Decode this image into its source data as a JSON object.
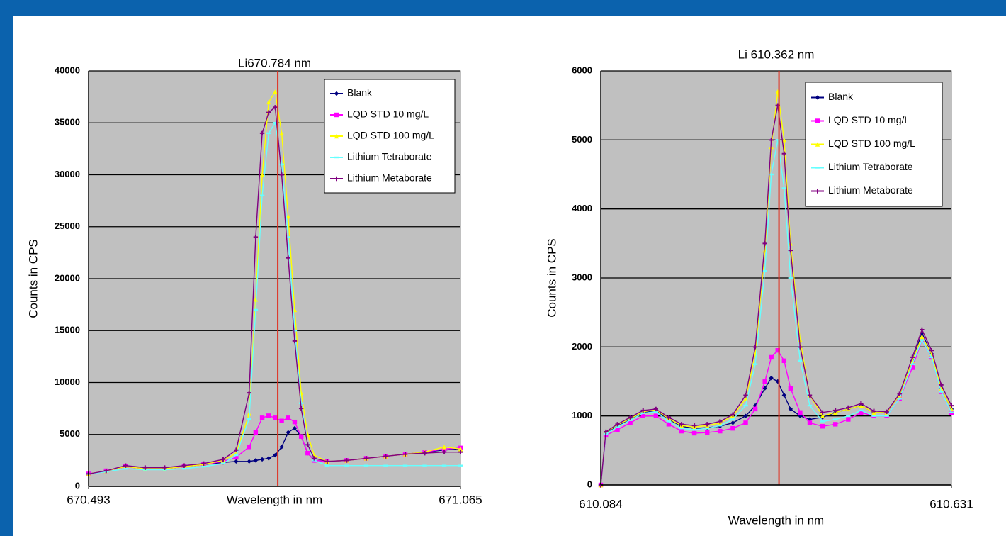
{
  "chart_data": [
    {
      "type": "line",
      "title": "Li670.784 nm",
      "x_label": "Wavelength in nm",
      "y_label": "Counts in CPS",
      "x": [
        670.493,
        670.52,
        670.55,
        670.58,
        670.61,
        670.64,
        670.67,
        670.7,
        670.72,
        670.74,
        670.75,
        670.76,
        670.77,
        670.78,
        670.79,
        670.8,
        670.81,
        670.82,
        670.83,
        670.84,
        670.86,
        670.89,
        670.92,
        670.95,
        670.98,
        671.01,
        671.04,
        671.065
      ],
      "series": [
        {
          "name": "Blank",
          "color": "#000080",
          "marker": "diamond",
          "values": [
            1200,
            1500,
            1900,
            1700,
            1700,
            1900,
            2100,
            2300,
            2400,
            2400,
            2500,
            2600,
            2700,
            3000,
            3800,
            5200,
            5600,
            4800,
            3200,
            2500,
            2400,
            2500,
            2700,
            2900,
            3100,
            3300,
            3500,
            3600
          ]
        },
        {
          "name": "LQD STD 10 mg/L",
          "color": "#ff00ff",
          "marker": "square",
          "values": [
            1200,
            1500,
            1900,
            1700,
            1700,
            1900,
            2100,
            2400,
            2800,
            3800,
            5200,
            6600,
            6800,
            6600,
            6300,
            6600,
            6200,
            4800,
            3200,
            2500,
            2400,
            2500,
            2700,
            2900,
            3100,
            3300,
            3600,
            3700
          ]
        },
        {
          "name": "LQD STD 100 mg/L",
          "color": "#ffff00",
          "marker": "triangle",
          "values": [
            1200,
            1500,
            1900,
            1700,
            1700,
            1900,
            2100,
            2500,
            3200,
            7000,
            18000,
            30000,
            37000,
            38000,
            34000,
            26000,
            17000,
            9000,
            5000,
            3000,
            2400,
            2500,
            2700,
            2900,
            3100,
            3300,
            3800,
            3600
          ]
        },
        {
          "name": "Lithium Tetraborate",
          "color": "#66ffff",
          "marker": "dash",
          "values": [
            1200,
            1400,
            1700,
            1600,
            1600,
            1700,
            1900,
            2200,
            3000,
            6500,
            17000,
            28000,
            34000,
            35000,
            31000,
            24000,
            15000,
            8000,
            4000,
            2500,
            2000,
            2000,
            2000,
            2000,
            2000,
            2000,
            2000,
            2000
          ]
        },
        {
          "name": "Lithium Metaborate",
          "color": "#800080",
          "marker": "cross",
          "values": [
            1200,
            1500,
            2000,
            1800,
            1800,
            2000,
            2200,
            2600,
            3500,
            9000,
            24000,
            34000,
            36000,
            36500,
            30000,
            22000,
            14000,
            7500,
            4000,
            2700,
            2400,
            2500,
            2700,
            2900,
            3100,
            3200,
            3300,
            3300
          ]
        }
      ],
      "reference_line": {
        "x": 670.784,
        "color": "#e03020"
      },
      "xlim": [
        670.493,
        671.065
      ],
      "xticks": [
        670.493,
        671.065
      ],
      "ylim": [
        0,
        40000
      ],
      "yticks": [
        0,
        5000,
        10000,
        15000,
        20000,
        25000,
        30000,
        35000,
        40000
      ],
      "grid": true,
      "legend": "top-right"
    },
    {
      "type": "line",
      "title": "Li 610.362 nm",
      "x_label": "Wavelength in nm",
      "y_label": "Counts in CPS",
      "x": [
        610.084,
        610.092,
        610.11,
        610.13,
        610.15,
        610.17,
        610.19,
        610.21,
        610.23,
        610.25,
        610.27,
        610.29,
        610.31,
        610.325,
        610.34,
        610.35,
        610.36,
        610.37,
        610.38,
        610.395,
        610.41,
        610.43,
        610.45,
        610.47,
        610.49,
        610.51,
        610.53,
        610.55,
        610.57,
        610.585,
        610.6,
        610.615,
        610.631
      ],
      "series": [
        {
          "name": "Blank",
          "color": "#000080",
          "marker": "diamond",
          "values": [
            0,
            750,
            850,
            950,
            1050,
            1080,
            950,
            850,
            820,
            830,
            850,
            900,
            1000,
            1150,
            1400,
            1550,
            1500,
            1300,
            1100,
            1000,
            950,
            980,
            1050,
            1100,
            1150,
            1050,
            1050,
            1300,
            1800,
            2200,
            1900,
            1400,
            1100
          ]
        },
        {
          "name": "LQD STD 10 mg/L",
          "color": "#ff00ff",
          "marker": "square",
          "values": [
            0,
            720,
            800,
            900,
            1000,
            1000,
            880,
            780,
            750,
            760,
            780,
            820,
            900,
            1100,
            1500,
            1850,
            1950,
            1800,
            1400,
            1050,
            900,
            850,
            880,
            950,
            1050,
            1000,
            1000,
            1250,
            1700,
            2100,
            1850,
            1350,
            1050
          ]
        },
        {
          "name": "LQD STD 100 mg/L",
          "color": "#ffff00",
          "marker": "triangle",
          "values": [
            0,
            760,
            870,
            960,
            1060,
            1090,
            960,
            860,
            840,
            860,
            900,
            1000,
            1250,
            1900,
            3400,
            4900,
            5700,
            5000,
            3500,
            2100,
            1300,
            1000,
            1050,
            1100,
            1150,
            1050,
            1050,
            1300,
            1800,
            2150,
            1900,
            1400,
            1100
          ]
        },
        {
          "name": "Lithium Tetraborate",
          "color": "#66ffff",
          "marker": "dash",
          "values": [
            0,
            740,
            840,
            940,
            1040,
            1060,
            920,
            820,
            800,
            820,
            860,
            950,
            1150,
            1750,
            3100,
            4500,
            5000,
            4300,
            3000,
            1800,
            1150,
            920,
            950,
            1000,
            1080,
            1000,
            1000,
            1250,
            1750,
            2100,
            1850,
            1350,
            1050
          ]
        },
        {
          "name": "Lithium Metaborate",
          "color": "#800080",
          "marker": "cross",
          "values": [
            0,
            770,
            880,
            980,
            1080,
            1100,
            980,
            880,
            860,
            880,
            920,
            1020,
            1300,
            2000,
            3500,
            5000,
            5500,
            4800,
            3400,
            2000,
            1300,
            1050,
            1080,
            1120,
            1180,
            1070,
            1060,
            1320,
            1850,
            2250,
            1950,
            1450,
            1150
          ]
        }
      ],
      "reference_line": {
        "x": 610.362,
        "color": "#e03020"
      },
      "xlim": [
        610.084,
        610.631
      ],
      "xticks": [
        610.084,
        610.631
      ],
      "ylim": [
        0,
        6000
      ],
      "yticks": [
        0,
        1000,
        2000,
        3000,
        4000,
        5000,
        6000
      ],
      "grid": true,
      "legend": "top-right"
    }
  ]
}
